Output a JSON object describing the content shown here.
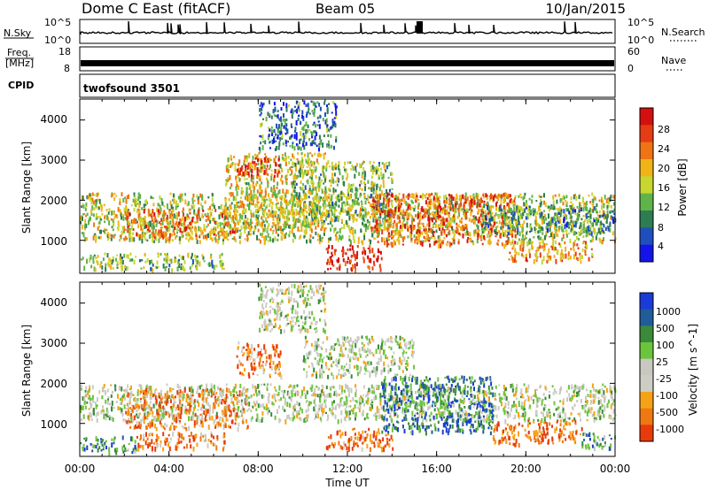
{
  "header": {
    "radar_title": "Dome C East (fitACF)",
    "beam": "Beam 05",
    "date": "10/Jan/2015"
  },
  "noise_panel": {
    "left_label": "N.Sky",
    "right_label": "N.Search",
    "left_ticks": [
      "10^5",
      "10^0"
    ],
    "right_ticks": [
      "10^5",
      "10^0"
    ]
  },
  "freq_panel": {
    "left_label_line1": "Freq.",
    "left_label_line2": "[MHz]",
    "right_label": "Nave",
    "left_ticks": [
      "18",
      "8"
    ],
    "right_ticks": [
      "60",
      "0"
    ]
  },
  "cpid": {
    "label": "CPID",
    "program": "twofsound 3501"
  },
  "x_axis": {
    "label": "Time UT",
    "ticks": [
      "00:00",
      "04:00",
      "08:00",
      "12:00",
      "16:00",
      "20:00",
      "00:00"
    ]
  },
  "chart_data": [
    {
      "type": "heatmap",
      "name": "power",
      "xlabel": "Time UT",
      "ylabel": "Slant Range [km]",
      "y_ticks": [
        "1000",
        "2000",
        "3000",
        "4000"
      ],
      "ylim": [
        200,
        4500
      ],
      "xlim_hours": [
        0,
        24
      ],
      "colorbar_label": "Power [dB]",
      "colorbar_ticks": [
        "4",
        "8",
        "12",
        "16",
        "20",
        "24",
        "28"
      ],
      "colorbar_colors": [
        "#1414e8",
        "#1f4fbf",
        "#2e7d52",
        "#5fb34a",
        "#c8d630",
        "#f0b418",
        "#ee7414",
        "#e63c14",
        "#d40f0f"
      ],
      "regions": [
        {
          "t0": 0.0,
          "t1": 6.5,
          "r0": 300,
          "r1": 700,
          "v": 0.42
        },
        {
          "t0": 0.0,
          "t1": 24.0,
          "r0": 1000,
          "r1": 2200,
          "v": 0.48
        },
        {
          "t0": 2.0,
          "t1": 7.0,
          "r0": 1100,
          "r1": 1800,
          "v": 0.72
        },
        {
          "t0": 6.5,
          "t1": 11.0,
          "r0": 1300,
          "r1": 3200,
          "v": 0.55
        },
        {
          "t0": 7.0,
          "t1": 9.0,
          "r0": 2600,
          "r1": 3100,
          "v": 0.85
        },
        {
          "t0": 8.0,
          "t1": 11.5,
          "r0": 3300,
          "r1": 4500,
          "v": 0.25
        },
        {
          "t0": 9.5,
          "t1": 14.0,
          "r0": 1500,
          "r1": 3000,
          "v": 0.42
        },
        {
          "t0": 11.0,
          "t1": 13.5,
          "r0": 300,
          "r1": 900,
          "v": 0.95
        },
        {
          "t0": 13.0,
          "t1": 19.5,
          "r0": 900,
          "r1": 2200,
          "v": 0.78
        },
        {
          "t0": 19.0,
          "t1": 23.0,
          "r0": 500,
          "r1": 1000,
          "v": 0.68
        },
        {
          "t0": 18.0,
          "t1": 24.0,
          "r0": 1200,
          "r1": 1900,
          "v": 0.3
        }
      ]
    },
    {
      "type": "heatmap",
      "name": "velocity",
      "xlabel": "Time UT",
      "ylabel": "Slant Range [km]",
      "y_ticks": [
        "1000",
        "2000",
        "3000",
        "4000"
      ],
      "ylim": [
        200,
        4500
      ],
      "xlim_hours": [
        0,
        24
      ],
      "colorbar_label": "Velocity [m s^-1]",
      "colorbar_ticks": [
        "1000",
        "500",
        "100",
        "25",
        "-25",
        "-100",
        "-500",
        "-1000"
      ],
      "colorbar_colors": [
        "#1a3bd6",
        "#205c9a",
        "#3a8a3a",
        "#6cc43c",
        "#c8c8c0",
        "#cdcdc5",
        "#f5a216",
        "#f07810",
        "#e83a0a"
      ],
      "regions": [
        {
          "t0": 0.0,
          "t1": 2.5,
          "r0": 300,
          "r1": 700,
          "v": 0.25
        },
        {
          "t0": 2.5,
          "t1": 6.5,
          "r0": 400,
          "r1": 800,
          "v": 0.82
        },
        {
          "t0": 0.0,
          "t1": 24.0,
          "r0": 1100,
          "r1": 2000,
          "v": 0.5
        },
        {
          "t0": 2.0,
          "t1": 7.5,
          "r0": 900,
          "r1": 1900,
          "v": 0.8
        },
        {
          "t0": 7.0,
          "t1": 9.0,
          "r0": 2200,
          "r1": 3100,
          "v": 0.8
        },
        {
          "t0": 8.0,
          "t1": 11.0,
          "r0": 3300,
          "r1": 4500,
          "v": 0.5
        },
        {
          "t0": 10.0,
          "t1": 15.0,
          "r0": 2200,
          "r1": 3200,
          "v": 0.5
        },
        {
          "t0": 11.0,
          "t1": 14.0,
          "r0": 400,
          "r1": 900,
          "v": 0.85
        },
        {
          "t0": 13.5,
          "t1": 18.5,
          "r0": 800,
          "r1": 2200,
          "v": 0.22
        },
        {
          "t0": 18.5,
          "t1": 22.5,
          "r0": 500,
          "r1": 1100,
          "v": 0.88
        },
        {
          "t0": 22.5,
          "t1": 24.0,
          "r0": 400,
          "r1": 800,
          "v": 0.3
        }
      ]
    }
  ]
}
